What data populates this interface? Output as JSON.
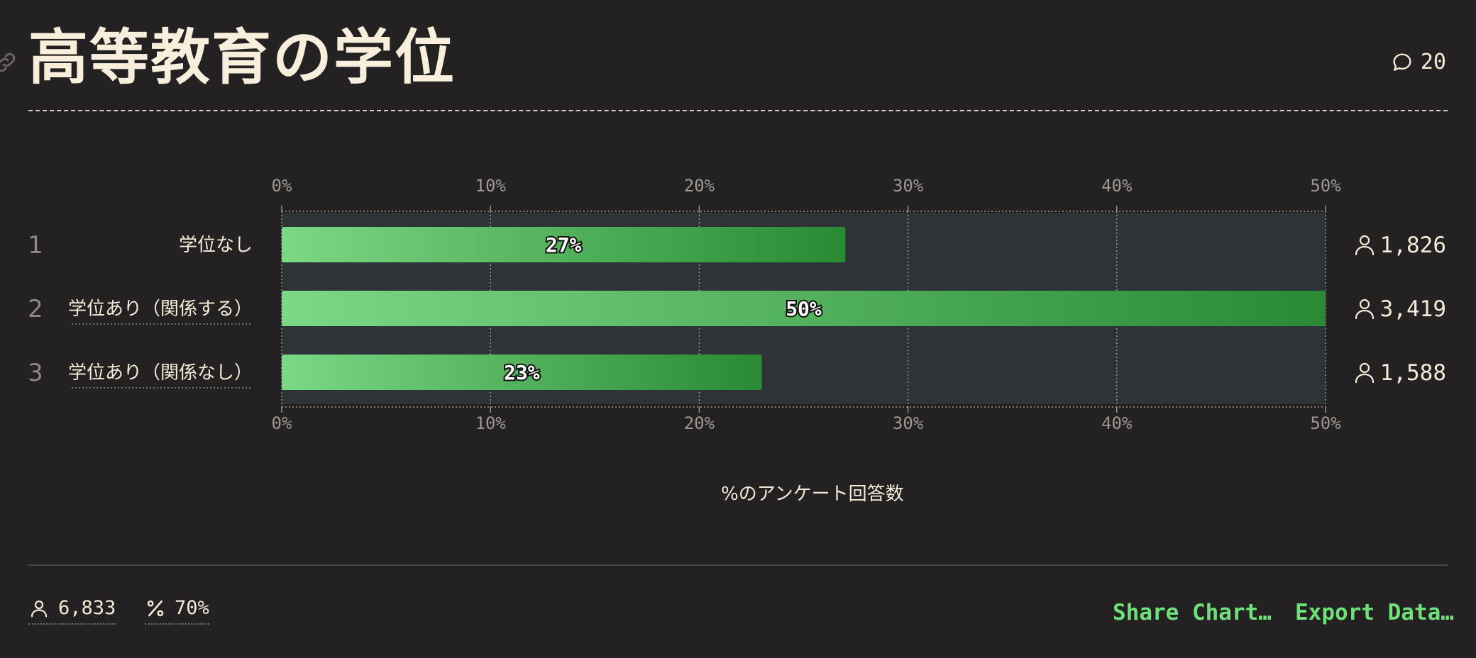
{
  "title": "高等教育の学位",
  "comments": {
    "icon": "comment-icon",
    "count": "20"
  },
  "chart_data": {
    "type": "bar",
    "orientation": "horizontal",
    "categories": [
      "学位なし",
      "学位あり（関係する）",
      "学位あり（関係なし）"
    ],
    "ranks": [
      "1",
      "2",
      "3"
    ],
    "values": [
      27,
      50,
      23
    ],
    "value_labels": [
      "27%",
      "50%",
      "23%"
    ],
    "respondents": [
      "1,826",
      "3,419",
      "1,588"
    ],
    "xlim": [
      0,
      50
    ],
    "xticks": [
      0,
      10,
      20,
      30,
      40,
      50
    ],
    "xtick_labels": [
      "0%",
      "10%",
      "20%",
      "30%",
      "40%",
      "50%"
    ],
    "xlabel": "%のアンケート回答数",
    "grid": true,
    "colors": {
      "bar_start": "#7bd884",
      "bar_end": "#2a8a34",
      "track": "#2d3336",
      "grid": "#9a9690"
    }
  },
  "footer": {
    "total_respondents": "6,833",
    "response_rate": "70%",
    "share_label": "Share Chart…",
    "export_label": "Export Data…",
    "accent": "#6fe07a"
  }
}
